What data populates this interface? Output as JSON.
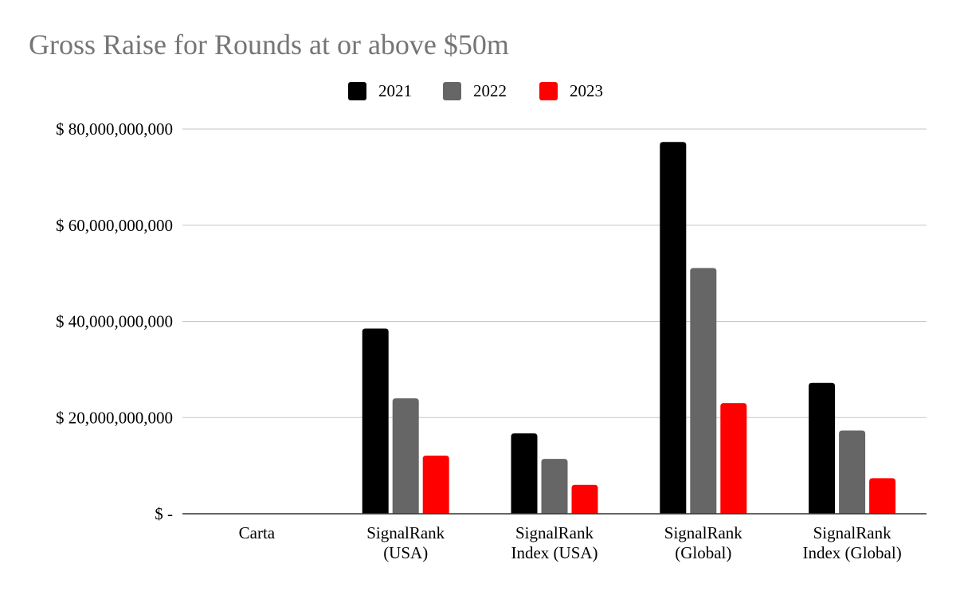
{
  "chart_data": {
    "type": "bar",
    "title": "Gross Raise for Rounds at or above $50m",
    "categories": [
      [
        "Carta"
      ],
      [
        "SignalRank",
        "(USA)"
      ],
      [
        "SignalRank",
        "Index (USA)"
      ],
      [
        "SignalRank",
        "(Global)"
      ],
      [
        "SignalRank",
        "Index (Global)"
      ]
    ],
    "series": [
      {
        "name": "2021",
        "color": "#000000",
        "values": [
          0,
          38500000000,
          16700000000,
          77300000000,
          27200000000
        ]
      },
      {
        "name": "2022",
        "color": "#666666",
        "values": [
          0,
          24000000000,
          11400000000,
          51100000000,
          17300000000
        ]
      },
      {
        "name": "2023",
        "color": "#ff0000",
        "values": [
          0,
          12100000000,
          6000000000,
          23000000000,
          7400000000
        ]
      }
    ],
    "ylim": [
      0,
      80000000000
    ],
    "yticks": [
      {
        "value": 0,
        "label": "$ -"
      },
      {
        "value": 20000000000,
        "label": "$ 20,000,000,000"
      },
      {
        "value": 40000000000,
        "label": "$ 40,000,000,000"
      },
      {
        "value": 60000000000,
        "label": "$ 60,000,000,000"
      },
      {
        "value": 80000000000,
        "label": "$ 80,000,000,000"
      }
    ],
    "xlabel": "",
    "ylabel": "",
    "grid": true,
    "legend": "top-center"
  }
}
